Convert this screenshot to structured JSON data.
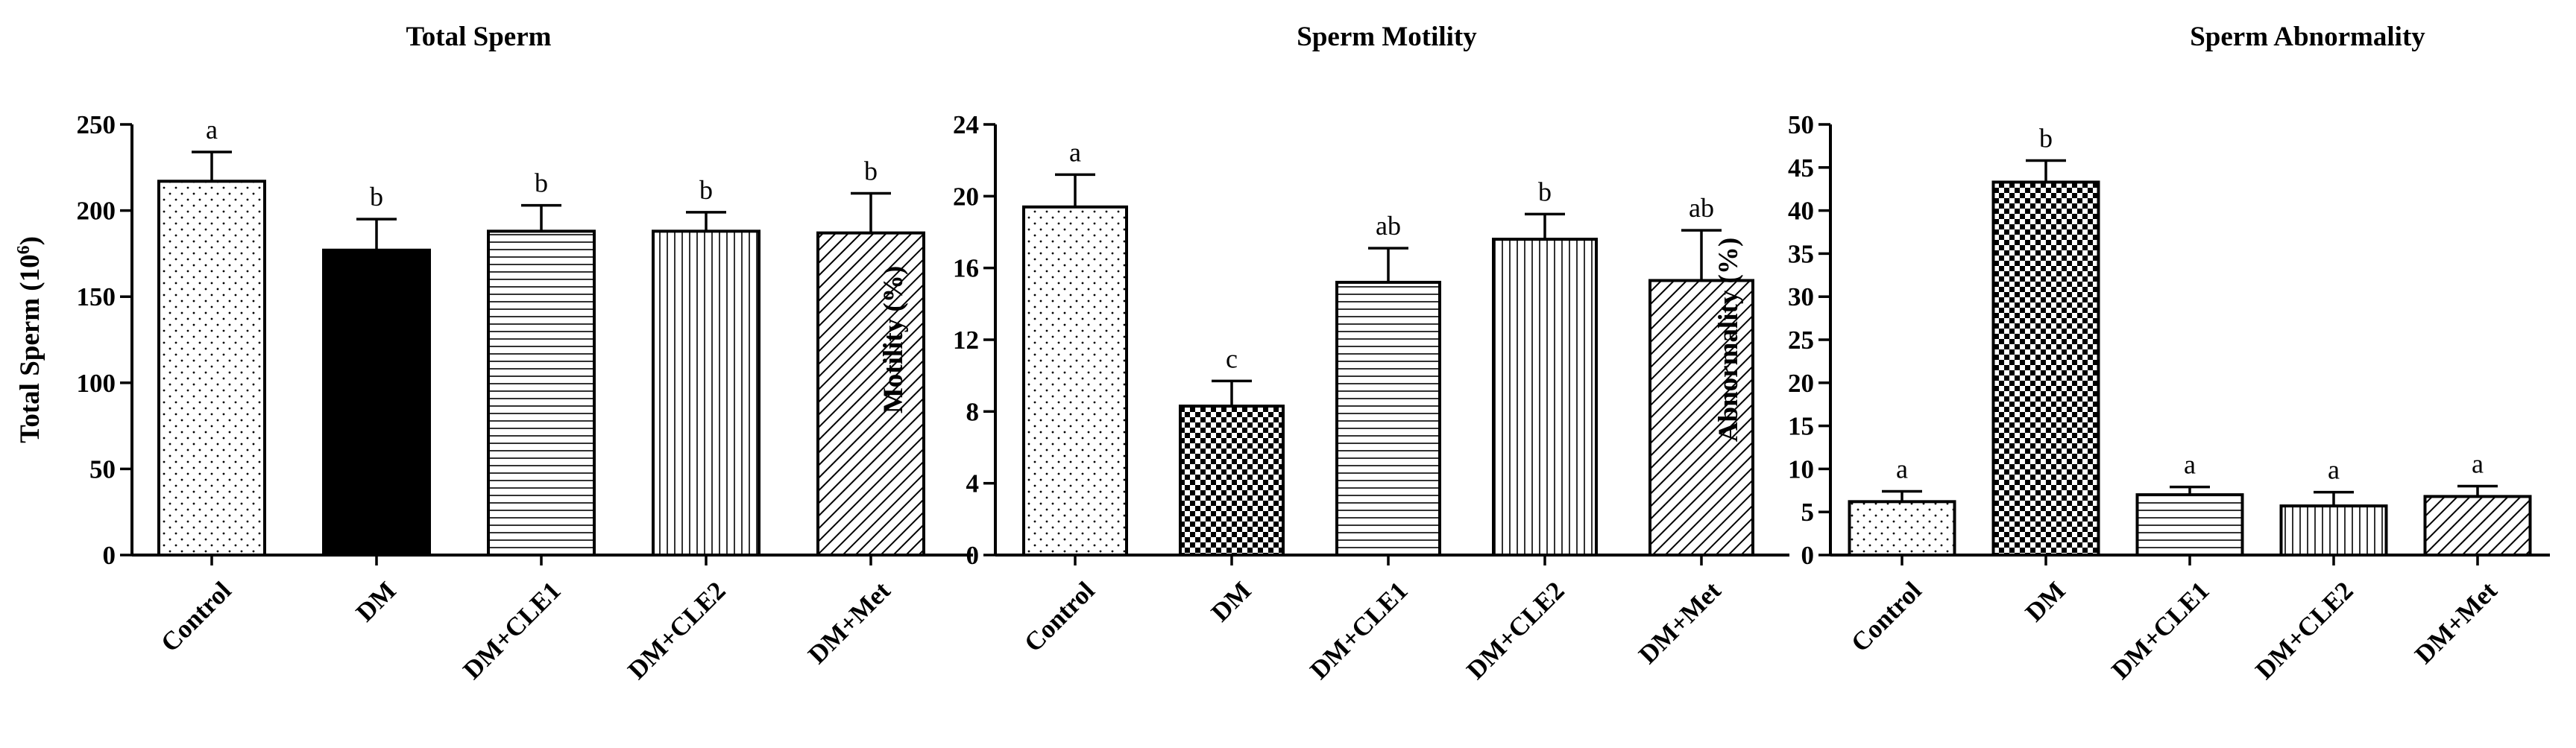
{
  "colors": {
    "ink": "#000000",
    "background": "#ffffff"
  },
  "chart_data": [
    {
      "type": "bar",
      "title": "Total  Sperm",
      "ylabel": "Total Sperm (10",
      "ylabel_superscript": "6",
      "ylabel_suffix": ")",
      "categories": [
        "Control",
        "DM",
        "DM+CLE1",
        "DM+CLE2",
        "DM+Met"
      ],
      "values": [
        217,
        177,
        188,
        188,
        187
      ],
      "errors": [
        17,
        18,
        15,
        11,
        23
      ],
      "significance": [
        "a",
        "b",
        "b",
        "b",
        "b"
      ],
      "patterns": [
        "dots",
        "solid",
        "hlines",
        "vlines",
        "diag"
      ],
      "ylim": [
        0,
        250
      ],
      "yticks": [
        0,
        50,
        100,
        150,
        200,
        250
      ]
    },
    {
      "type": "bar",
      "title": "Sperm Motility",
      "ylabel": "Motility (%)",
      "categories": [
        "Control",
        "DM",
        "DM+CLE1",
        "DM+CLE2",
        "DM+Met"
      ],
      "values": [
        19.4,
        8.3,
        15.2,
        17.6,
        15.3
      ],
      "errors": [
        1.8,
        1.4,
        1.9,
        1.4,
        2.8
      ],
      "significance": [
        "a",
        "c",
        "ab",
        "b",
        "ab"
      ],
      "patterns": [
        "dots",
        "checker",
        "hlines",
        "vlines",
        "diag"
      ],
      "ylim": [
        0,
        24
      ],
      "yticks": [
        0,
        4,
        8,
        12,
        16,
        20,
        24
      ]
    },
    {
      "type": "bar",
      "title": "Sperm Abnormality",
      "ylabel": "Abnormality (%)",
      "categories": [
        "Control",
        "DM",
        "DM+CLE1",
        "DM+CLE2",
        "DM+Met"
      ],
      "values": [
        6.2,
        43.3,
        7.0,
        5.7,
        6.8
      ],
      "errors": [
        1.2,
        2.5,
        0.9,
        1.6,
        1.2
      ],
      "significance": [
        "a",
        "b",
        "a",
        "a",
        "a"
      ],
      "patterns": [
        "dots",
        "checker",
        "hlines",
        "vlines",
        "diag"
      ],
      "ylim": [
        0,
        50
      ],
      "yticks": [
        0,
        5,
        10,
        15,
        20,
        25,
        30,
        35,
        40,
        45,
        50
      ]
    }
  ]
}
